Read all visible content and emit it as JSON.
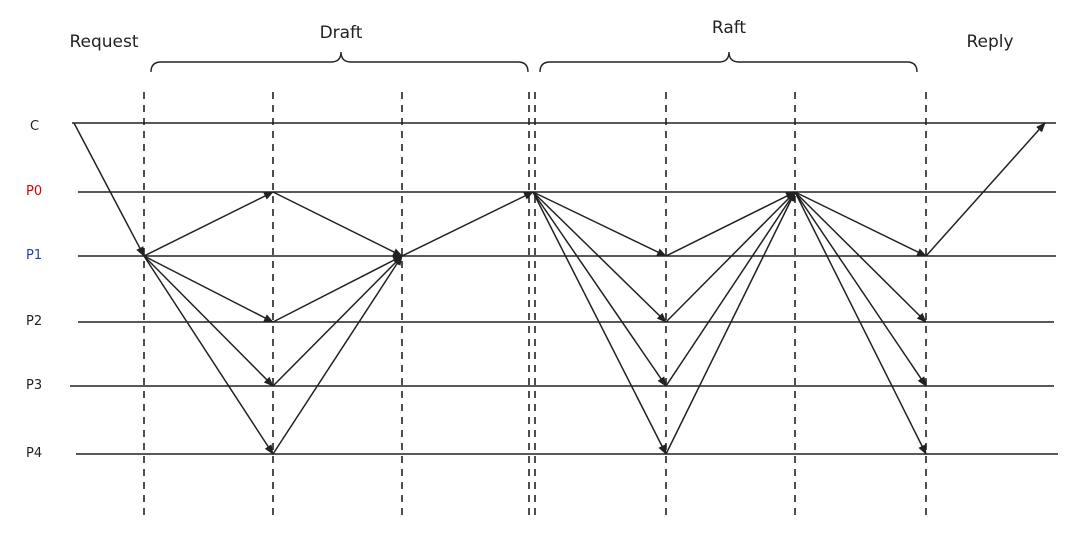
{
  "phases": {
    "request": "Request",
    "draft": "Draft",
    "raft": "Raft",
    "reply": "Reply"
  },
  "processes": [
    {
      "id": "C",
      "label": "C",
      "color": "#222222"
    },
    {
      "id": "P0",
      "label": "P0",
      "color": "#e00000"
    },
    {
      "id": "P1",
      "label": "P1",
      "color": "#1f3fbf"
    },
    {
      "id": "P2",
      "label": "P2",
      "color": "#222222"
    },
    {
      "id": "P3",
      "label": "P3",
      "color": "#222222"
    },
    {
      "id": "P4",
      "label": "P4",
      "color": "#222222"
    }
  ],
  "messages": [
    {
      "from": "C",
      "to": "P1",
      "from_step": 0,
      "to_step": 1
    },
    {
      "from": "P1",
      "to": "P0",
      "from_step": 1,
      "to_step": 2
    },
    {
      "from": "P1",
      "to": "P2",
      "from_step": 1,
      "to_step": 2
    },
    {
      "from": "P1",
      "to": "P3",
      "from_step": 1,
      "to_step": 2
    },
    {
      "from": "P1",
      "to": "P4",
      "from_step": 1,
      "to_step": 2
    },
    {
      "from": "P0",
      "to": "P1",
      "from_step": 2,
      "to_step": 3
    },
    {
      "from": "P2",
      "to": "P1",
      "from_step": 2,
      "to_step": 3
    },
    {
      "from": "P3",
      "to": "P1",
      "from_step": 2,
      "to_step": 3
    },
    {
      "from": "P4",
      "to": "P1",
      "from_step": 2,
      "to_step": 3
    },
    {
      "from": "P1",
      "to": "P0",
      "from_step": 3,
      "to_step": 4
    },
    {
      "from": "P0",
      "to": "P1",
      "from_step": 4,
      "to_step": 5
    },
    {
      "from": "P0",
      "to": "P2",
      "from_step": 4,
      "to_step": 5
    },
    {
      "from": "P0",
      "to": "P3",
      "from_step": 4,
      "to_step": 5
    },
    {
      "from": "P0",
      "to": "P4",
      "from_step": 4,
      "to_step": 5
    },
    {
      "from": "P1",
      "to": "P0",
      "from_step": 5,
      "to_step": 6
    },
    {
      "from": "P2",
      "to": "P0",
      "from_step": 5,
      "to_step": 6
    },
    {
      "from": "P3",
      "to": "P0",
      "from_step": 5,
      "to_step": 6
    },
    {
      "from": "P4",
      "to": "P0",
      "from_step": 5,
      "to_step": 6
    },
    {
      "from": "P0",
      "to": "P1",
      "from_step": 6,
      "to_step": 7
    },
    {
      "from": "P0",
      "to": "P2",
      "from_step": 6,
      "to_step": 7
    },
    {
      "from": "P0",
      "to": "P3",
      "from_step": 6,
      "to_step": 7
    },
    {
      "from": "P0",
      "to": "P4",
      "from_step": 6,
      "to_step": 7
    },
    {
      "from": "P1",
      "to": "C",
      "from_step": 7,
      "to_step": 8
    }
  ]
}
